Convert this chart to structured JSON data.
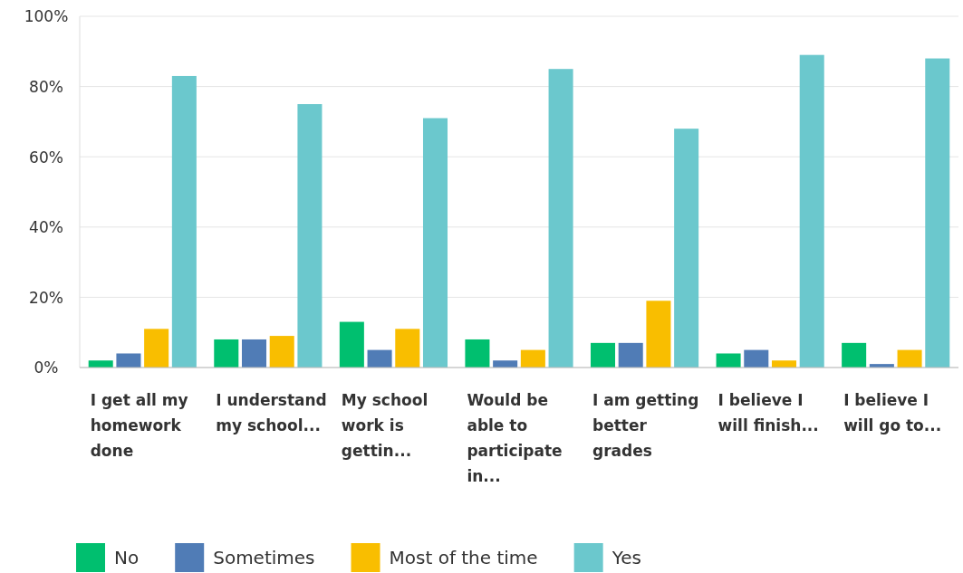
{
  "chart_data": {
    "type": "bar",
    "categories": [
      "I get all my homework done",
      "I understand my school...",
      "My school work is gettin...",
      "Would be able to participate in...",
      "I am getting better grades",
      "I believe I will finish...",
      "I believe I will go to..."
    ],
    "series": [
      {
        "name": "No",
        "color": "#00bf6f",
        "values": [
          2,
          8,
          13,
          8,
          7,
          4,
          7
        ]
      },
      {
        "name": "Sometimes",
        "color": "#507cb6",
        "values": [
          4,
          8,
          5,
          2,
          7,
          5,
          1
        ]
      },
      {
        "name": "Most of the time",
        "color": "#f9be00",
        "values": [
          11,
          9,
          11,
          5,
          19,
          2,
          5
        ]
      },
      {
        "name": "Yes",
        "color": "#6bc8cd",
        "values": [
          83,
          75,
          71,
          85,
          68,
          89,
          88
        ]
      }
    ],
    "ylim": [
      0,
      100
    ],
    "yticks": [
      {
        "value": 0,
        "label": "0%"
      },
      {
        "value": 20,
        "label": "20%"
      },
      {
        "value": 40,
        "label": "40%"
      },
      {
        "value": 60,
        "label": "60%"
      },
      {
        "value": 80,
        "label": "80%"
      },
      {
        "value": 100,
        "label": "100%"
      }
    ],
    "grid": "y",
    "legend": "bottom"
  }
}
